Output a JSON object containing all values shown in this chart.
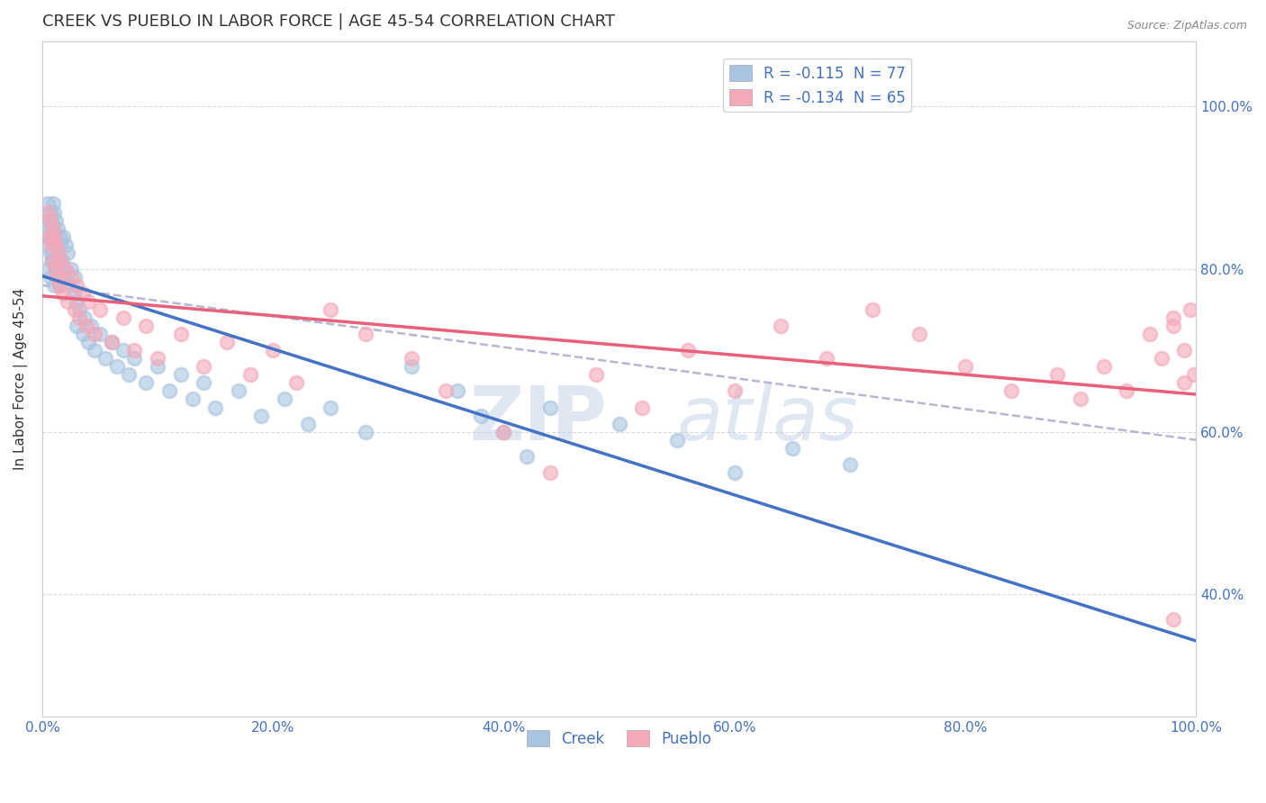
{
  "title": "CREEK VS PUEBLO IN LABOR FORCE | AGE 45-54 CORRELATION CHART",
  "source_text": "Source: ZipAtlas.com",
  "ylabel": "In Labor Force | Age 45-54",
  "xlim": [
    0.0,
    1.0
  ],
  "ylim": [
    0.25,
    1.08
  ],
  "creek_R": -0.115,
  "creek_N": 77,
  "pueblo_R": -0.134,
  "pueblo_N": 65,
  "creek_color": "#a8c4e0",
  "pueblo_color": "#f4a8b8",
  "creek_line_color": "#4472c4",
  "pueblo_line_color": "#e8607a",
  "dashed_line_color": "#aaaacc",
  "background_color": "#ffffff",
  "grid_color": "#cccccc",
  "title_color": "#333333",
  "axis_label_color": "#333333",
  "tick_color": "#4472c4",
  "legend_text_color": "#4472c4",
  "creek_x": [
    0.005,
    0.005,
    0.005,
    0.005,
    0.005,
    0.007,
    0.007,
    0.007,
    0.007,
    0.008,
    0.008,
    0.008,
    0.009,
    0.009,
    0.009,
    0.01,
    0.01,
    0.01,
    0.01,
    0.012,
    0.012,
    0.012,
    0.013,
    0.013,
    0.015,
    0.015,
    0.015,
    0.016,
    0.017,
    0.018,
    0.019,
    0.02,
    0.02,
    0.022,
    0.023,
    0.025,
    0.027,
    0.028,
    0.03,
    0.03,
    0.032,
    0.035,
    0.037,
    0.04,
    0.042,
    0.045,
    0.05,
    0.055,
    0.06,
    0.065,
    0.07,
    0.075,
    0.08,
    0.09,
    0.1,
    0.11,
    0.12,
    0.13,
    0.14,
    0.15,
    0.17,
    0.19,
    0.21,
    0.23,
    0.25,
    0.28,
    0.32,
    0.36,
    0.38,
    0.4,
    0.42,
    0.44,
    0.5,
    0.55,
    0.6,
    0.65,
    0.7
  ],
  "creek_y": [
    0.88,
    0.86,
    0.84,
    0.83,
    0.8,
    0.87,
    0.85,
    0.82,
    0.79,
    0.86,
    0.84,
    0.81,
    0.88,
    0.85,
    0.82,
    0.87,
    0.84,
    0.81,
    0.78,
    0.86,
    0.83,
    0.8,
    0.85,
    0.82,
    0.84,
    0.81,
    0.78,
    0.83,
    0.81,
    0.84,
    0.8,
    0.83,
    0.79,
    0.82,
    0.78,
    0.8,
    0.77,
    0.79,
    0.76,
    0.73,
    0.75,
    0.72,
    0.74,
    0.71,
    0.73,
    0.7,
    0.72,
    0.69,
    0.71,
    0.68,
    0.7,
    0.67,
    0.69,
    0.66,
    0.68,
    0.65,
    0.67,
    0.64,
    0.66,
    0.63,
    0.65,
    0.62,
    0.64,
    0.61,
    0.63,
    0.6,
    0.68,
    0.65,
    0.62,
    0.6,
    0.57,
    0.63,
    0.61,
    0.59,
    0.55,
    0.58,
    0.56
  ],
  "pueblo_x": [
    0.005,
    0.006,
    0.007,
    0.008,
    0.009,
    0.009,
    0.01,
    0.011,
    0.012,
    0.013,
    0.014,
    0.015,
    0.016,
    0.018,
    0.02,
    0.022,
    0.025,
    0.028,
    0.03,
    0.032,
    0.035,
    0.038,
    0.04,
    0.045,
    0.05,
    0.06,
    0.07,
    0.08,
    0.09,
    0.1,
    0.12,
    0.14,
    0.16,
    0.18,
    0.2,
    0.22,
    0.25,
    0.28,
    0.32,
    0.35,
    0.4,
    0.44,
    0.48,
    0.52,
    0.56,
    0.6,
    0.64,
    0.68,
    0.72,
    0.76,
    0.8,
    0.84,
    0.88,
    0.9,
    0.92,
    0.94,
    0.96,
    0.97,
    0.98,
    0.98,
    0.99,
    0.995,
    0.998,
    0.99,
    0.98
  ],
  "pueblo_y": [
    0.87,
    0.84,
    0.86,
    0.83,
    0.85,
    0.81,
    0.84,
    0.8,
    0.83,
    0.79,
    0.82,
    0.78,
    0.81,
    0.77,
    0.8,
    0.76,
    0.79,
    0.75,
    0.78,
    0.74,
    0.77,
    0.73,
    0.76,
    0.72,
    0.75,
    0.71,
    0.74,
    0.7,
    0.73,
    0.69,
    0.72,
    0.68,
    0.71,
    0.67,
    0.7,
    0.66,
    0.75,
    0.72,
    0.69,
    0.65,
    0.6,
    0.55,
    0.67,
    0.63,
    0.7,
    0.65,
    0.73,
    0.69,
    0.75,
    0.72,
    0.68,
    0.65,
    0.67,
    0.64,
    0.68,
    0.65,
    0.72,
    0.69,
    0.37,
    0.73,
    0.7,
    0.75,
    0.67,
    0.66,
    0.74
  ]
}
